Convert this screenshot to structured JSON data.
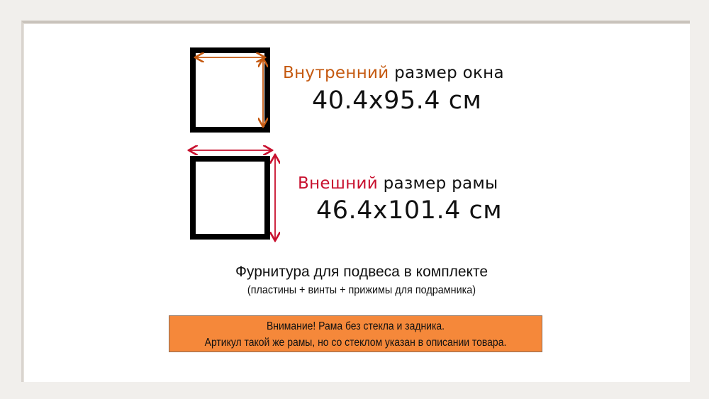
{
  "colors": {
    "inner_accent": "#c55a11",
    "outer_accent": "#c8102e",
    "notice_bg": "#f5883a"
  },
  "inner_size": {
    "highlight": "Внутренний",
    "label": " размер окна",
    "value": "40.4x95.4 см"
  },
  "outer_size": {
    "highlight": "Внешний",
    "label": " размер рамы",
    "value": "46.4x101.4 см"
  },
  "hardware": {
    "title": "Фурнитура для подвеса в комплекте",
    "details": "(пластины + винты + прижимы для подрамника)"
  },
  "notice": {
    "line1": "Внимание! Рама без стекла и задника.",
    "line2": "Артикул такой же рамы, но со стеклом указан в описании товара."
  }
}
